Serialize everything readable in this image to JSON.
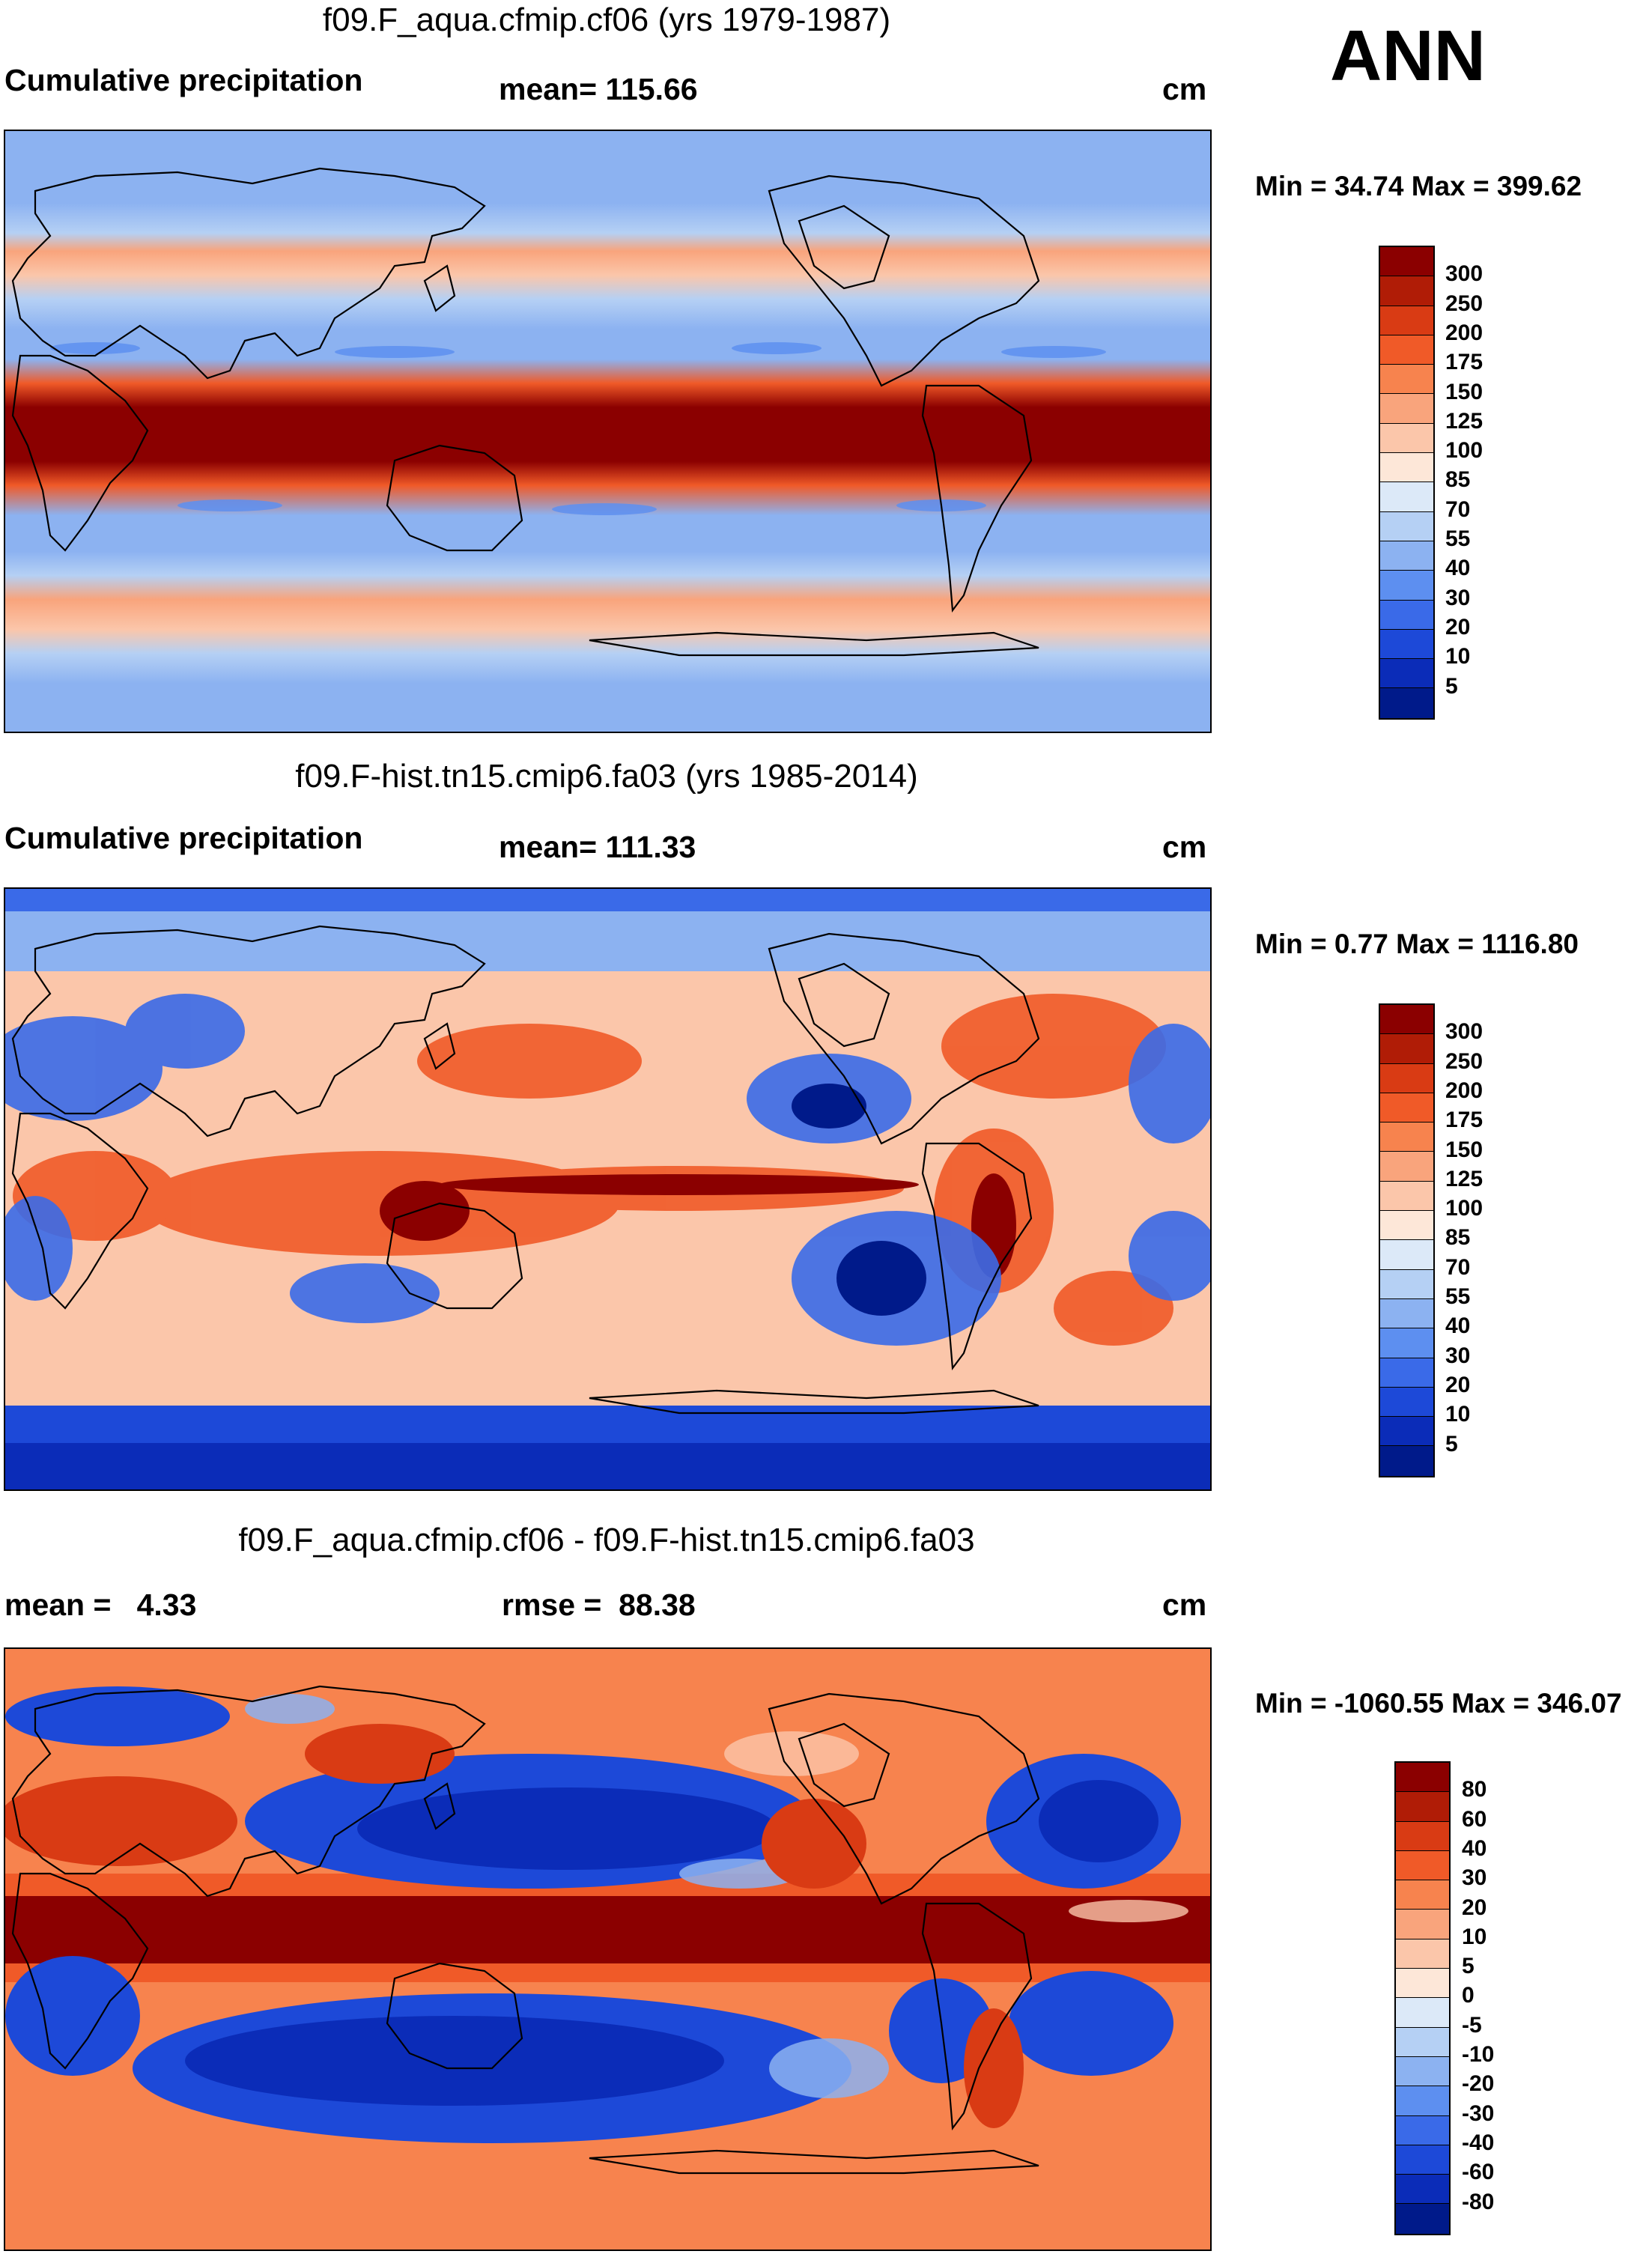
{
  "season": "ANN",
  "panels": [
    {
      "title": "f09.F_aqua.cfmip.cf06 (yrs 1979-1987)",
      "left_label": "Cumulative precipitation",
      "center_label": "mean= 115.66",
      "units": "cm",
      "minmax": "Min =  34.74 Max = 399.62",
      "colorbar": {
        "colors": [
          "#8b0000",
          "#b01c06",
          "#d93b14",
          "#f05a28",
          "#f7834e",
          "#f9a47c",
          "#fbc6aa",
          "#fde7d8",
          "#dce9f8",
          "#b5d0f4",
          "#8cb2f1",
          "#5d8ff0",
          "#3a6ae8",
          "#1d49d8",
          "#0b2cb8",
          "#001a8a"
        ],
        "ticks": [
          "300",
          "250",
          "200",
          "175",
          "150",
          "125",
          "100",
          "85",
          "70",
          "55",
          "40",
          "30",
          "20",
          "10",
          "5"
        ]
      }
    },
    {
      "title": "f09.F-hist.tn15.cmip6.fa03 (yrs 1985-2014)",
      "left_label": "Cumulative precipitation",
      "center_label": "mean= 111.33",
      "units": "cm",
      "minmax": "Min =   0.77 Max = 1116.80",
      "colorbar": {
        "colors": [
          "#8b0000",
          "#b01c06",
          "#d93b14",
          "#f05a28",
          "#f7834e",
          "#f9a47c",
          "#fbc6aa",
          "#fde7d8",
          "#dce9f8",
          "#b5d0f4",
          "#8cb2f1",
          "#5d8ff0",
          "#3a6ae8",
          "#1d49d8",
          "#0b2cb8",
          "#001a8a"
        ],
        "ticks": [
          "300",
          "250",
          "200",
          "175",
          "150",
          "125",
          "100",
          "85",
          "70",
          "55",
          "40",
          "30",
          "20",
          "10",
          "5"
        ]
      }
    },
    {
      "title": "f09.F_aqua.cfmip.cf06 - f09.F-hist.tn15.cmip6.fa03",
      "left_label": "mean =   4.33",
      "center_label": "rmse =  88.38",
      "units": "cm",
      "minmax": "Min = -1060.55 Max = 346.07",
      "colorbar": {
        "colors": [
          "#8b0000",
          "#b01c06",
          "#d93b14",
          "#f05a28",
          "#f7834e",
          "#f9a47c",
          "#fbc6aa",
          "#fde7d8",
          "#dce9f8",
          "#b5d0f4",
          "#8cb2f1",
          "#5d8ff0",
          "#3a6ae8",
          "#1d49d8",
          "#0b2cb8",
          "#001a8a"
        ],
        "ticks": [
          "80",
          "60",
          "40",
          "30",
          "20",
          "10",
          "5",
          "0",
          "-5",
          "-10",
          "-20",
          "-30",
          "-40",
          "-60",
          "-80"
        ]
      }
    }
  ]
}
